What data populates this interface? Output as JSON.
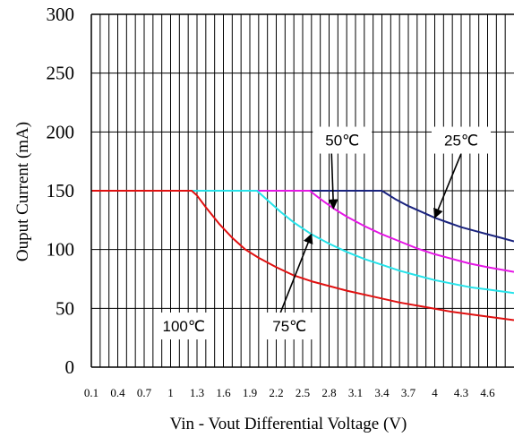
{
  "chart_data": {
    "type": "line",
    "title": "",
    "xlabel": "Vin - Vout Differential Voltage (V)",
    "ylabel": "Ouput Current (mA)",
    "xlim": [
      0.1,
      4.9
    ],
    "ylim": [
      0,
      300
    ],
    "grid": true,
    "x_ticks": [
      "0.1",
      "0.4",
      "0.7",
      "1",
      "1.3",
      "1.6",
      "1.9",
      "2.2",
      "2.5",
      "2.8",
      "3.1",
      "3.4",
      "3.7",
      "4",
      "4.3",
      "4.6"
    ],
    "y_ticks": [
      "0",
      "50",
      "100",
      "150",
      "200",
      "250",
      "300"
    ],
    "series": [
      {
        "name": "25℃",
        "color": "#1a237e",
        "x": [
          0.1,
          3.4,
          3.55,
          3.7,
          3.85,
          4.0,
          4.15,
          4.3,
          4.45,
          4.6,
          4.75,
          4.9
        ],
        "y": [
          150,
          150,
          143,
          137,
          132,
          127,
          123,
          119,
          116,
          113,
          110,
          107
        ]
      },
      {
        "name": "50℃",
        "color": "#e617e6",
        "x": [
          0.1,
          2.58,
          2.7,
          2.85,
          3.0,
          3.2,
          3.4,
          3.6,
          3.8,
          4.0,
          4.2,
          4.4,
          4.6,
          4.9
        ],
        "y": [
          150,
          150,
          143,
          135,
          128,
          120,
          113,
          107,
          101,
          96,
          92,
          88,
          85,
          81
        ]
      },
      {
        "name": "75℃",
        "color": "#26e3ea",
        "x": [
          0.1,
          1.98,
          2.1,
          2.25,
          2.4,
          2.6,
          2.8,
          3.0,
          3.2,
          3.4,
          3.6,
          3.8,
          4.0,
          4.2,
          4.4,
          4.6,
          4.9
        ],
        "y": [
          150,
          150,
          142,
          132,
          123,
          113,
          105,
          98,
          92,
          87,
          82,
          78,
          74,
          71,
          68,
          66,
          63
        ]
      },
      {
        "name": "100℃",
        "color": "#e01010",
        "x": [
          0.1,
          1.24,
          1.3,
          1.4,
          1.55,
          1.7,
          1.85,
          2.0,
          2.2,
          2.4,
          2.6,
          2.8,
          3.0,
          3.3,
          3.6,
          3.9,
          4.2,
          4.5,
          4.9
        ],
        "y": [
          150,
          150,
          146,
          136,
          122,
          110,
          100,
          93,
          85,
          78,
          73,
          69,
          65,
          60,
          55,
          51,
          47,
          44,
          40
        ]
      }
    ],
    "annotations": [
      {
        "text": "25℃",
        "series": "25℃",
        "arrow_to": [
          4.0,
          127
        ]
      },
      {
        "text": "50℃",
        "series": "50℃",
        "arrow_to": [
          2.85,
          135
        ]
      },
      {
        "text": "75℃",
        "series": "75℃",
        "arrow_to": [
          2.6,
          113
        ]
      },
      {
        "text": "100℃",
        "series": "100℃"
      }
    ]
  }
}
